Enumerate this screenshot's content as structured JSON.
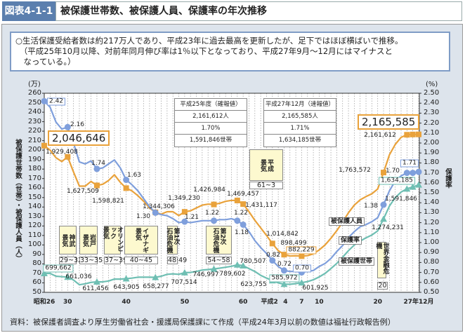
{
  "header": {
    "figure_number": "図表4-1-1",
    "title": "被保護世帯数、被保護人員、保護率の年次推移"
  },
  "summary": "○生活保護受給者数は約217万人であり、平成23年に過去最高を更新したが、足下ではほぼ横ばいで推移。\n　（平成25年10月以降、対前年同月伸び率は1％以下となっており、平成27年9月～12月にはマイナスと\n　なっている。）",
  "footer": "資料：被保護者調査より厚生労働省社会・援護局保護課にて作成（平成24年3月以前の数値は福祉行政報告例）",
  "colors": {
    "persons": "#e9a23b",
    "rate": "#7f9fdc",
    "households": "#6fbfb3",
    "header": "#5b7fae"
  },
  "chart_data": {
    "type": "line",
    "left_axis": {
      "unit": "(万)",
      "label": "被保護世帯数（世帯）・被保護人員（人）",
      "range": [
        50,
        260
      ],
      "step": 10
    },
    "right_axis": {
      "unit": "(%)",
      "label": "保護率",
      "range": [
        0.5,
        2.5
      ],
      "step": 0.1
    },
    "x_ticks": [
      {
        "year": 1951,
        "label": "昭和26"
      },
      {
        "year": 1955,
        "label": "30"
      },
      {
        "year": 1965,
        "label": "40"
      },
      {
        "year": 1975,
        "label": "50"
      },
      {
        "year": 1985,
        "label": "60"
      },
      {
        "year": 1990,
        "label": "平成2"
      },
      {
        "year": 1992,
        "label": "4"
      },
      {
        "year": 1995,
        "label": "7"
      },
      {
        "year": 1998,
        "label": "10"
      },
      {
        "year": 2008,
        "label": "20"
      },
      {
        "year": 2015,
        "label": "27年12月"
      }
    ],
    "grid": "vertical dotted per year",
    "years": [
      1951,
      1952,
      1953,
      1954,
      1955,
      1956,
      1957,
      1958,
      1959,
      1960,
      1961,
      1962,
      1963,
      1964,
      1965,
      1966,
      1967,
      1968,
      1969,
      1970,
      1971,
      1972,
      1973,
      1974,
      1975,
      1976,
      1977,
      1978,
      1979,
      1980,
      1981,
      1982,
      1983,
      1984,
      1985,
      1986,
      1987,
      1988,
      1989,
      1990,
      1991,
      1992,
      1993,
      1994,
      1995,
      1996,
      1997,
      1998,
      1999,
      2000,
      2001,
      2002,
      2003,
      2004,
      2005,
      2006,
      2007,
      2008,
      2009,
      2010,
      2011,
      2012,
      2013,
      2014,
      2015
    ],
    "marker_years": [
      1951,
      1955,
      1960,
      1965,
      1970,
      1975,
      1980,
      1984,
      1985,
      1990,
      1992,
      1995,
      2009,
      2013,
      2014,
      2015
    ],
    "series": [
      {
        "name": "被保護人員",
        "axis": "left",
        "values": [
          204.7,
          200,
          192,
          188,
          192.9,
          177,
          162,
          162,
          167,
          162.8,
          164,
          168,
          174,
          166,
          159.9,
          157,
          152,
          146,
          139,
          134.4,
          132.5,
          135,
          135,
          131,
          134.9,
          136,
          139,
          142,
          143,
          142.7,
          144,
          146,
          147,
          146.9,
          143.1,
          135,
          126,
          118,
          110,
          101.5,
          94,
          89.8,
          88.3,
          88.5,
          88.2,
          88.7,
          90.6,
          94.7,
          100,
          107,
          115,
          124,
          134,
          142,
          147.5,
          151,
          154,
          159,
          176.4,
          195,
          206,
          213.5,
          216.2,
          216.5,
          216.6
        ]
      },
      {
        "name": "保護率",
        "axis": "right",
        "values": [
          2.42,
          2.36,
          2.21,
          2.14,
          2.16,
          2.0,
          1.81,
          1.79,
          1.82,
          1.74,
          1.75,
          1.79,
          1.83,
          1.75,
          1.63,
          1.58,
          1.52,
          1.44,
          1.36,
          1.3,
          1.28,
          1.27,
          1.24,
          1.2,
          1.21,
          1.2,
          1.21,
          1.22,
          1.22,
          1.22,
          1.23,
          1.23,
          1.24,
          1.22,
          1.18,
          1.11,
          1.02,
          0.95,
          0.89,
          0.82,
          0.76,
          0.72,
          0.71,
          0.71,
          0.7,
          0.71,
          0.72,
          0.76,
          0.79,
          0.84,
          0.91,
          0.97,
          1.05,
          1.11,
          1.16,
          1.18,
          1.21,
          1.25,
          1.38,
          1.52,
          1.62,
          1.67,
          1.7,
          1.7,
          1.71
        ]
      },
      {
        "name": "被保護世帯",
        "axis": "left",
        "values": [
          70.0,
          70,
          67,
          66.5,
          66.1,
          63,
          58,
          59,
          60.5,
          61.1,
          61,
          62,
          64,
          64,
          64.4,
          65,
          66,
          66,
          66,
          65.8,
          67,
          69,
          69.5,
          69,
          70.8,
          71,
          72,
          73.5,
          74,
          74.7,
          75.5,
          76.5,
          77.5,
          79.0,
          78.1,
          75,
          72,
          68,
          65,
          62.4,
          60,
          58.6,
          58.5,
          59.2,
          60.2,
          61.3,
          63.2,
          66.3,
          70,
          75.1,
          80.5,
          87,
          94,
          99.9,
          104,
          107.5,
          110.5,
          114.8,
          127.4,
          141,
          149.9,
          155.8,
          159.2,
          161.2,
          163.4
        ]
      }
    ],
    "data_labels": {
      "persons": [
        "2,046,646",
        "1,929,408",
        "1,627,509",
        "1,598,821",
        "1,344,306",
        "1,349,230",
        "1,426,984",
        "1,469,457",
        "1,431,117",
        "1,014,842",
        "898,499",
        "882,229",
        "1,763,572",
        "2,161,612",
        "2,165,585"
      ],
      "rate": [
        "2.42",
        "2.16",
        "1.74",
        "1.63",
        "1.30",
        "1.21",
        "1.22",
        "1.22",
        "1.18",
        "0.82",
        "0.72",
        "0.70",
        "1.38",
        "1.70",
        "1.71"
      ],
      "households": [
        "699,662",
        "661,036",
        "611,456",
        "643,905",
        "658,277",
        "707,514",
        "746,997",
        "789,602",
        "780,507",
        "623,755",
        "585,972",
        "601,925",
        "1,274,231",
        "1,591,846",
        "1,634,185"
      ]
    },
    "legend": [
      "被保護人員",
      "保護率",
      "被保護世帯"
    ],
    "eras": [
      {
        "name": "神武\n景気",
        "period": "29~32"
      },
      {
        "name": "岩戸\n景気",
        "period": "33~35"
      },
      {
        "name": "オリンピック\n景気",
        "period": "37~39"
      },
      {
        "name": "イザナギ\n景気",
        "period": "40~45"
      },
      {
        "name": "第1次\n石油危機",
        "period": "48·49"
      },
      {
        "name": "第2次\n石油危機",
        "period": "54~58"
      },
      {
        "name": "平成\n景気",
        "period": "61~3"
      },
      {
        "name": "世界金融危機",
        "period": "20"
      }
    ],
    "info_boxes": [
      {
        "title": "平成25年度（確報値）",
        "persons": "2,161,612人",
        "rate": "1.70%",
        "households": "1,591,846世帯"
      },
      {
        "title": "平成27年12月（速報値）",
        "persons": "2,165,585人",
        "rate": "1.71%",
        "households": "1,634,185世帯"
      }
    ]
  }
}
